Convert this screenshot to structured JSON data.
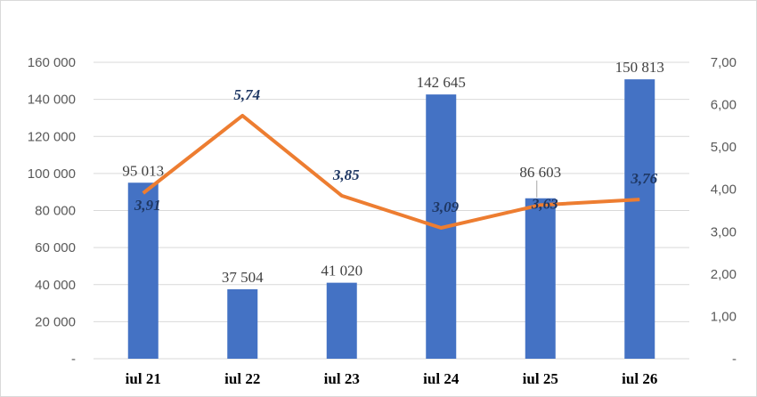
{
  "chart_data": {
    "type": "bar",
    "categories": [
      "iul 21",
      "iul 22",
      "iul 23",
      "iul 24",
      "iul 25",
      "iul 26"
    ],
    "series": [
      {
        "type": "bar",
        "axis": "left",
        "color": "#4472c4",
        "values": [
          95013,
          37504,
          41020,
          142645,
          86603,
          150813
        ],
        "value_labels": [
          "95 013",
          "37 504",
          "41 020",
          "142 645",
          "86 603",
          "150 813"
        ]
      },
      {
        "type": "line",
        "axis": "right",
        "color": "#ed7d31",
        "values": [
          3.91,
          5.74,
          3.85,
          3.09,
          3.63,
          3.76
        ],
        "value_labels": [
          "3,91",
          "5,74",
          "3,85",
          "3,09",
          "3,63",
          "3,76"
        ]
      }
    ],
    "left_axis": {
      "ylim": [
        0,
        160000
      ],
      "ticks": [
        0,
        20000,
        40000,
        60000,
        80000,
        100000,
        120000,
        140000,
        160000
      ],
      "tick_labels": [
        "-",
        "20 000",
        "40 000",
        "60 000",
        "80 000",
        "100 000",
        "120 000",
        "140 000",
        "160 000"
      ]
    },
    "right_axis": {
      "ylim": [
        0,
        7
      ],
      "ticks": [
        0,
        1,
        2,
        3,
        4,
        5,
        6,
        7
      ],
      "tick_labels": [
        "-",
        "1,00",
        "2,00",
        "3,00",
        "4,00",
        "5,00",
        "6,00",
        "7,00"
      ]
    },
    "grid": true,
    "legend": "none"
  }
}
